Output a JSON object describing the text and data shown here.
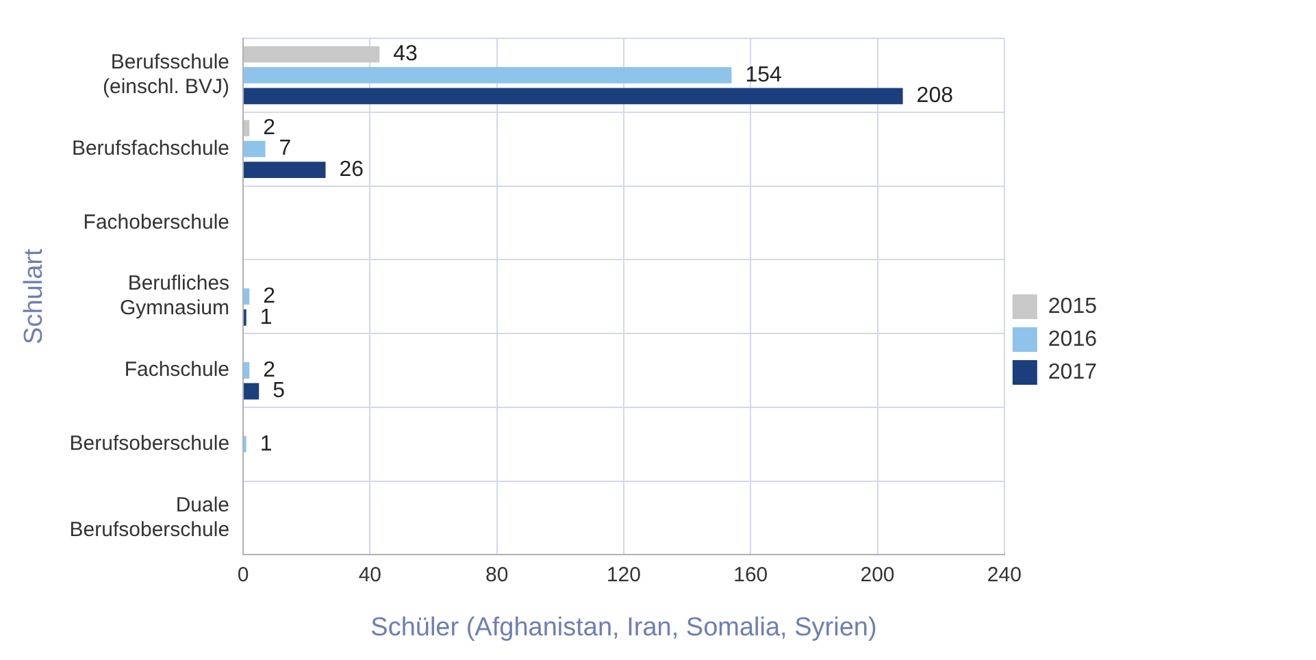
{
  "chart_data": {
    "type": "bar",
    "orientation": "horizontal",
    "xlabel": "Schüler (Afghanistan, Iran, Somalia, Syrien)",
    "ylabel": "Schulart",
    "categories": [
      "Berufsschule\n(einschl. BVJ)",
      "Berufsfachschule",
      "Fachoberschule",
      "Berufliches\nGymnasium",
      "Fachschule",
      "Berufsoberschule",
      "Duale\nBerufsoberschule"
    ],
    "series": [
      {
        "name": "2015",
        "color": "#c8c8c8",
        "values": [
          43,
          2,
          null,
          null,
          null,
          null,
          null
        ]
      },
      {
        "name": "2016",
        "color": "#8ec4ec",
        "values": [
          154,
          7,
          null,
          2,
          2,
          1,
          null
        ]
      },
      {
        "name": "2017",
        "color": "#1b3f7c",
        "values": [
          208,
          26,
          null,
          1,
          5,
          null,
          null
        ]
      }
    ],
    "xlim": [
      0,
      240
    ],
    "xticks": [
      0,
      40,
      80,
      120,
      160,
      200,
      240
    ],
    "grid": true,
    "legend": "right",
    "data_labels": true
  }
}
